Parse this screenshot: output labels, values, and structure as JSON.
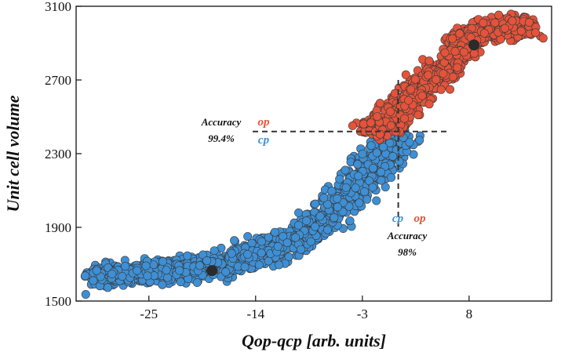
{
  "chart_data": {
    "type": "scatter",
    "title": "",
    "xlabel": "Qop-qcp [arb. units]",
    "ylabel": "Unit cell volume",
    "xlim": [
      -32.5,
      16.5
    ],
    "ylim": [
      1500,
      3100
    ],
    "xticks": [
      -25,
      -14,
      -3,
      8
    ],
    "yticks": [
      1500,
      1900,
      2300,
      2700,
      3100
    ],
    "grid": false,
    "colors": {
      "cp": "#3e8fd4",
      "op": "#e4533a",
      "centroid": "#2b2b2b",
      "dash": "#333333"
    },
    "series": [
      {
        "label": "cp",
        "curve": [
          [
            -31,
            1640
          ],
          [
            -28,
            1650
          ],
          [
            -24,
            1660
          ],
          [
            -20,
            1675
          ],
          [
            -17,
            1700
          ],
          [
            -14,
            1745
          ],
          [
            -11,
            1810
          ],
          [
            -8,
            1900
          ],
          [
            -6,
            1980
          ],
          [
            -4,
            2110
          ],
          [
            -2,
            2240
          ],
          [
            0,
            2350
          ],
          [
            1,
            2410
          ]
        ],
        "point_count": 1600,
        "spread_x": 1.2,
        "spread_y": 28,
        "centroid": [
          -18.5,
          1665
        ]
      },
      {
        "label": "op",
        "curve": [
          [
            -2,
            2420
          ],
          [
            0,
            2480
          ],
          [
            2,
            2600
          ],
          [
            4,
            2700
          ],
          [
            6,
            2800
          ],
          [
            7,
            2870
          ],
          [
            8,
            2930
          ],
          [
            10,
            2970
          ],
          [
            12,
            2985
          ],
          [
            14,
            2985
          ]
        ],
        "point_count": 1000,
        "spread_x": 0.9,
        "spread_y": 28,
        "centroid": [
          8.5,
          2890
        ]
      }
    ],
    "thresholds": {
      "x": 0.7,
      "y": 2420
    },
    "annotations": {
      "left": {
        "accuracy_label": "Accuracy",
        "accuracy_value": "99.4%",
        "above": "op",
        "below": "cp"
      },
      "bottom": {
        "accuracy_label": "Accuracy",
        "accuracy_value": "98%",
        "left": "cp",
        "right": "op"
      }
    }
  }
}
